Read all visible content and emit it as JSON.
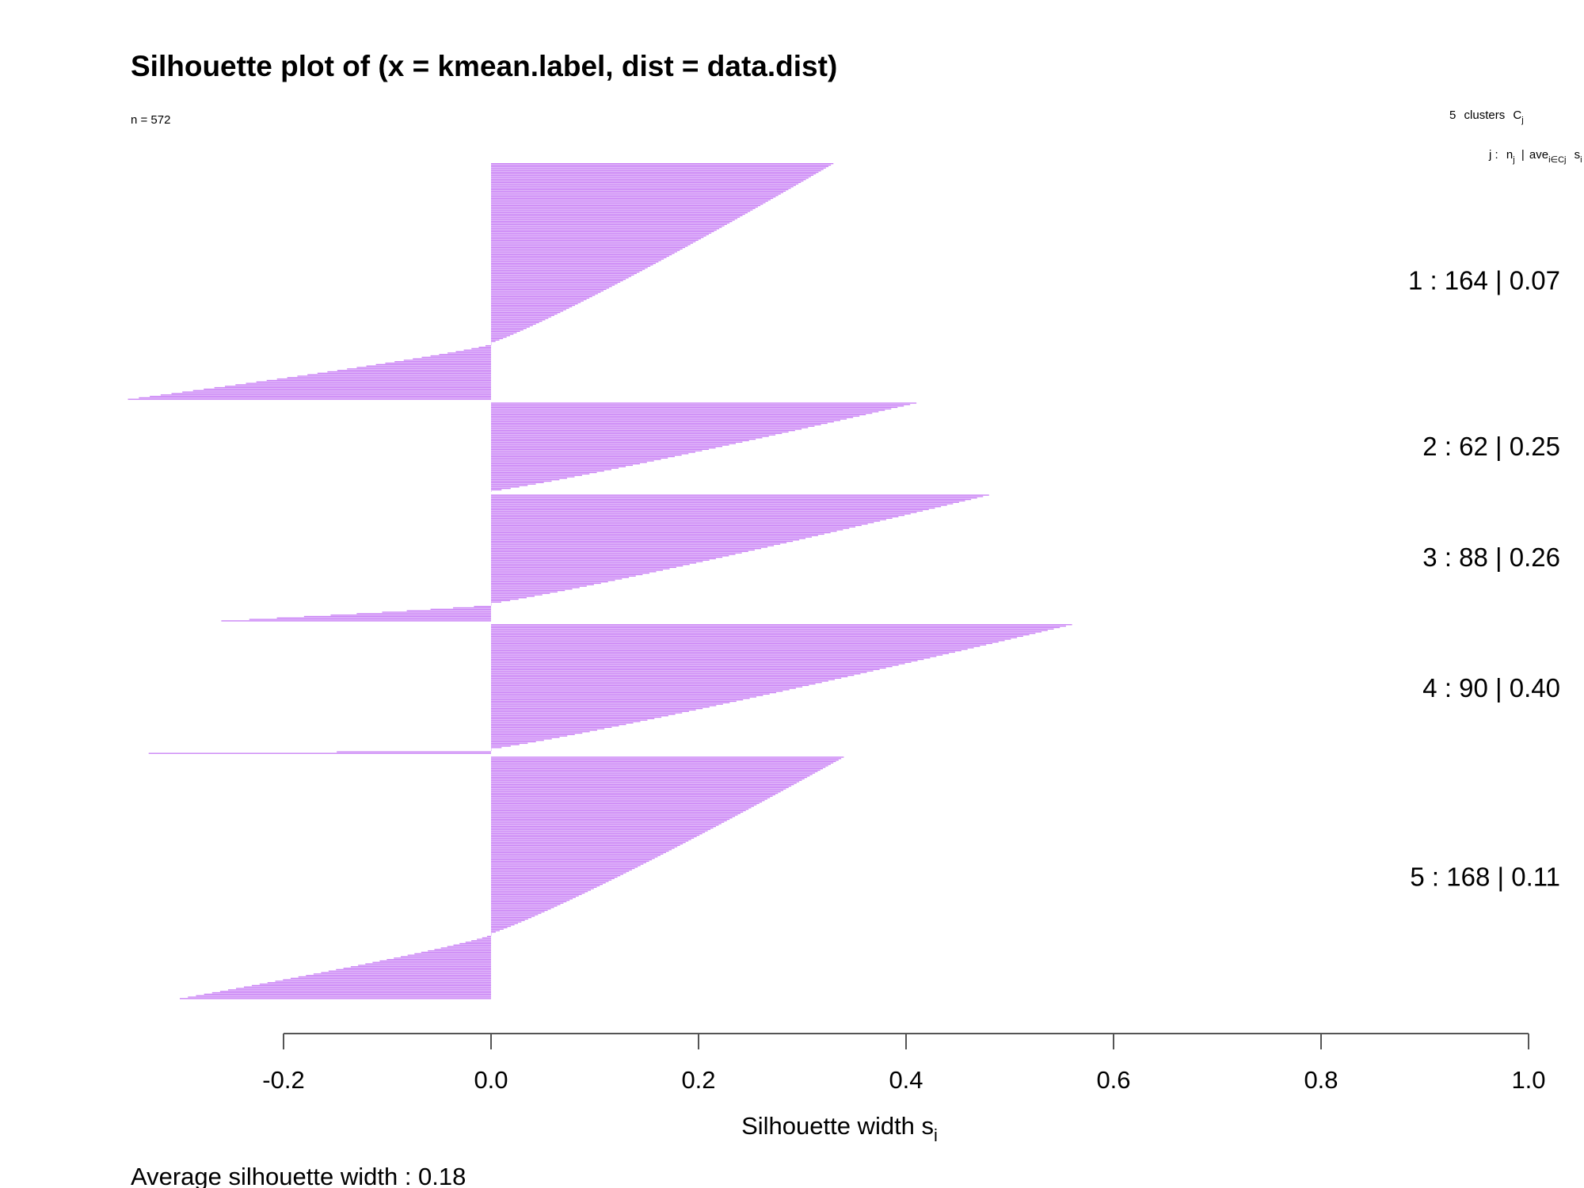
{
  "chart_data": {
    "type": "bar",
    "orientation": "horizontal",
    "title": "Silhouette plot of (x = kmean.label, dist = data.dist)",
    "n_label": "n = 572",
    "header_clusters": {
      "count": "5",
      "label": "clusters",
      "sym": "C",
      "sub": "j"
    },
    "header_columns": {
      "j": "j :",
      "n": "n",
      "n_sub": "j",
      "sep": "|",
      "ave": "ave",
      "ave_sub": "i∈Cj",
      "s": "s",
      "s_sub": "i"
    },
    "xlabel": "Silhouette width s",
    "xlabel_sub": "i",
    "xlim": [
      -0.35,
      1.0
    ],
    "xticks": [
      -0.2,
      0.0,
      0.2,
      0.4,
      0.6,
      0.8,
      1.0
    ],
    "xtick_labels": [
      "-0.2",
      "0.0",
      "0.2",
      "0.4",
      "0.6",
      "0.8",
      "1.0"
    ],
    "footer": "Average silhouette width :  0.18",
    "bar_color": "#c77cf5",
    "clusters": [
      {
        "id": "1",
        "n": 164,
        "avg": "0.07",
        "label": "1 :   164  |  0.07",
        "max": 0.33,
        "min": -0.35,
        "pos_count": 125
      },
      {
        "id": "2",
        "n": 62,
        "avg": "0.25",
        "label": "2 :   62  |  0.25",
        "max": 0.41,
        "min": 0.0,
        "pos_count": 62
      },
      {
        "id": "3",
        "n": 88,
        "avg": "0.26",
        "label": "3 :   88  |  0.26",
        "max": 0.48,
        "min": -0.26,
        "pos_count": 76
      },
      {
        "id": "4",
        "n": 90,
        "avg": "0.40",
        "label": "4 :   90  |  0.40",
        "max": 0.56,
        "min": -0.33,
        "pos_count": 87
      },
      {
        "id": "5",
        "n": 168,
        "avg": "0.11",
        "label": "5 :   168  |  0.11",
        "max": 0.34,
        "min": -0.3,
        "pos_count": 123
      }
    ]
  }
}
